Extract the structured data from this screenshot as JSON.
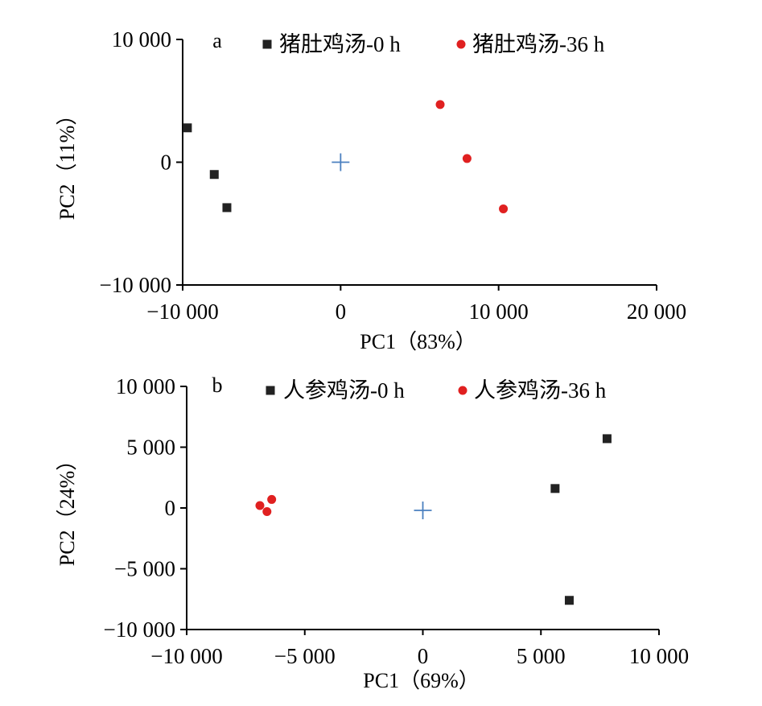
{
  "colors": {
    "series_0h": "#222222",
    "series_36h": "#e02020",
    "center": "#4a7fbf",
    "axis": "#000000"
  },
  "chart_data": [
    {
      "type": "scatter",
      "panel": "a",
      "xlabel": "PC1（83%）",
      "ylabel": "PC2（11%）",
      "xlim": [
        -10000,
        20000
      ],
      "ylim": [
        -10000,
        10000
      ],
      "x_ticks": [
        -10000,
        0,
        10000,
        20000
      ],
      "x_tick_labels": [
        "−10 000",
        "0",
        "10 000",
        "20 000"
      ],
      "y_ticks": [
        -10000,
        0,
        10000
      ],
      "y_tick_labels": [
        "−10 000",
        "0",
        "10 000"
      ],
      "legend_position": "top",
      "center_marker": {
        "x": 0,
        "y": 0,
        "symbol": "+"
      },
      "series": [
        {
          "name": "猪肚鸡汤-0 h",
          "marker": "square",
          "points": [
            {
              "x": -9700,
              "y": 2800
            },
            {
              "x": -8000,
              "y": -1000
            },
            {
              "x": -7200,
              "y": -3700
            }
          ]
        },
        {
          "name": "猪肚鸡汤-36  h",
          "marker": "circle",
          "points": [
            {
              "x": 6300,
              "y": 4700
            },
            {
              "x": 8000,
              "y": 300
            },
            {
              "x": 10300,
              "y": -3800
            }
          ]
        }
      ]
    },
    {
      "type": "scatter",
      "panel": "b",
      "xlabel": "PC1（69%）",
      "ylabel": "PC2（24%）",
      "xlim": [
        -10000,
        10000
      ],
      "ylim": [
        -10000,
        10000
      ],
      "x_ticks": [
        -10000,
        -5000,
        0,
        5000,
        10000
      ],
      "x_tick_labels": [
        "−10 000",
        "−5 000",
        "0",
        "5 000",
        "10 000"
      ],
      "y_ticks": [
        -10000,
        -5000,
        0,
        5000,
        10000
      ],
      "y_tick_labels": [
        "−10 000",
        "−5 000",
        "0",
        "5 000",
        "10 000"
      ],
      "legend_position": "top",
      "center_marker": {
        "x": 0,
        "y": -200,
        "symbol": "+"
      },
      "series": [
        {
          "name": "人参鸡汤-0 h",
          "marker": "square",
          "points": [
            {
              "x": 5600,
              "y": 1600
            },
            {
              "x": 7800,
              "y": 5700
            },
            {
              "x": 6200,
              "y": -7600
            }
          ]
        },
        {
          "name": "人参鸡汤-36  h",
          "marker": "circle",
          "points": [
            {
              "x": -6900,
              "y": 200
            },
            {
              "x": -6600,
              "y": -300
            },
            {
              "x": -6400,
              "y": 700
            }
          ]
        }
      ]
    }
  ]
}
